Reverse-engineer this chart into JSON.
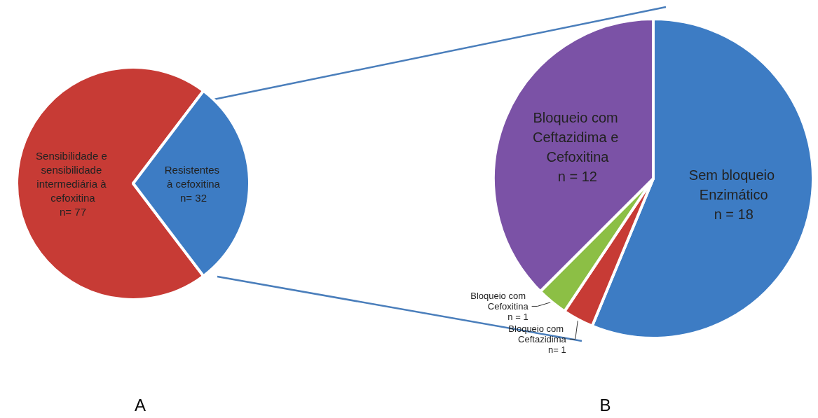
{
  "chart_data": [
    {
      "type": "pie",
      "title": "A",
      "categories": [
        "Sensibilidade e sensibilidade intermediária à cefoxitina",
        "Resistentes à cefoxitina"
      ],
      "values": [
        77,
        32
      ],
      "colors": [
        "#c73b35",
        "#3d7cc4"
      ],
      "value_labels": [
        "n= 77",
        "n= 32"
      ]
    },
    {
      "type": "pie",
      "title": "B",
      "categories": [
        "Sem bloqueio Enzimático",
        "Bloqueio com Ceftazidima",
        "Bloqueio com Cefoxitina",
        "Bloqueio com Ceftazidima e Cefoxitina"
      ],
      "values": [
        18,
        1,
        1,
        12
      ],
      "colors": [
        "#3d7cc4",
        "#c73b35",
        "#8cbf45",
        "#7b52a6"
      ],
      "value_labels": [
        "n = 18",
        "n= 1",
        "n = 1",
        "n = 12"
      ]
    }
  ]
}
